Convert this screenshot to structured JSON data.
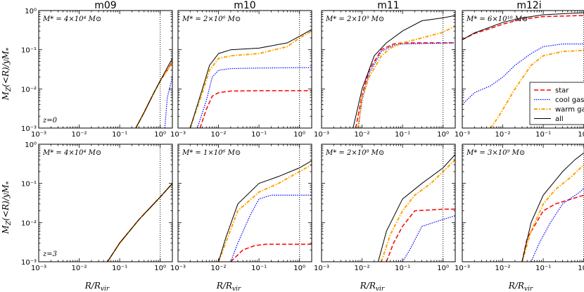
{
  "chart_data": {
    "type": "line",
    "xlabel": "R/R_vir",
    "ylabel": "M_Z(<R)/yM_*",
    "xlim": [
      0.001,
      2
    ],
    "ylim": [
      0.001,
      1
    ],
    "x_scale": "log",
    "y_scale": "log",
    "x_tick_labels": [
      "10^-3",
      "10^-2",
      "10^-1",
      "10^0"
    ],
    "y_tick_labels": [
      "10^-3",
      "10^-2",
      "10^-1",
      "10^0"
    ],
    "series_styles": [
      {
        "key": "star",
        "name": "star",
        "color": "#ff0000",
        "dash": "6,3",
        "width": 1.5
      },
      {
        "key": "cool",
        "name": "cool gas",
        "color": "#0000ff",
        "dash": "1.5,1.5",
        "width": 1.2
      },
      {
        "key": "warm",
        "name": "warm gas",
        "color": "#ffa500",
        "dash": "5,2,1.5,2",
        "width": 2
      },
      {
        "key": "all",
        "name": "all",
        "color": "#000000",
        "dash": "",
        "width": 1
      }
    ],
    "legend": {
      "panel": 3,
      "position": "center-right"
    },
    "vline_x": 1,
    "panels": [
      {
        "column_title": "m09",
        "annotation": "M_* = 4×10^4 M_⊙",
        "redshift": "z=0",
        "series": {
          "star": [
            [
              0.25,
              0.001
            ],
            [
              0.4,
              0.0025
            ],
            [
              0.7,
              0.008
            ],
            [
              1,
              0.016
            ],
            [
              1.5,
              0.03
            ],
            [
              2,
              0.05
            ]
          ],
          "cool": [
            [
              1.3,
              0.001
            ],
            [
              1.5,
              0.006
            ],
            [
              2,
              0.02
            ]
          ],
          "warm": [
            [
              0.25,
              0.001
            ],
            [
              0.4,
              0.0025
            ],
            [
              0.7,
              0.008
            ],
            [
              1,
              0.016
            ],
            [
              1.5,
              0.03
            ],
            [
              2,
              0.05
            ]
          ],
          "all": [
            [
              0.25,
              0.001
            ],
            [
              0.4,
              0.0025
            ],
            [
              0.7,
              0.008
            ],
            [
              1,
              0.016
            ],
            [
              1.5,
              0.035
            ],
            [
              2,
              0.06
            ]
          ]
        }
      },
      {
        "column_title": "m10",
        "annotation": "M_* = 2×10^6 M_⊙",
        "redshift": "",
        "series": {
          "star": [
            [
              0.0035,
              0.001
            ],
            [
              0.005,
              0.003
            ],
            [
              0.007,
              0.0065
            ],
            [
              0.01,
              0.008
            ],
            [
              0.02,
              0.0088
            ],
            [
              0.1,
              0.009
            ],
            [
              2,
              0.009
            ]
          ],
          "cool": [
            [
              0.003,
              0.001
            ],
            [
              0.005,
              0.005
            ],
            [
              0.007,
              0.02
            ],
            [
              0.01,
              0.03
            ],
            [
              0.02,
              0.033
            ],
            [
              0.1,
              0.034
            ],
            [
              2,
              0.035
            ]
          ],
          "warm": [
            [
              0.002,
              0.001
            ],
            [
              0.004,
              0.008
            ],
            [
              0.006,
              0.03
            ],
            [
              0.01,
              0.06
            ],
            [
              0.02,
              0.07
            ],
            [
              0.1,
              0.08
            ],
            [
              0.5,
              0.12
            ],
            [
              1,
              0.2
            ],
            [
              2,
              0.3
            ]
          ],
          "all": [
            [
              0.002,
              0.001
            ],
            [
              0.004,
              0.01
            ],
            [
              0.006,
              0.04
            ],
            [
              0.01,
              0.08
            ],
            [
              0.02,
              0.1
            ],
            [
              0.1,
              0.11
            ],
            [
              0.5,
              0.15
            ],
            [
              1,
              0.22
            ],
            [
              2,
              0.33
            ]
          ]
        }
      },
      {
        "column_title": "m11",
        "annotation": "M_* = 2×10^9 M_⊙",
        "redshift": "",
        "series": {
          "star": [
            [
              0.007,
              0.001
            ],
            [
              0.01,
              0.007
            ],
            [
              0.015,
              0.03
            ],
            [
              0.03,
              0.1
            ],
            [
              0.06,
              0.14
            ],
            [
              0.1,
              0.15
            ],
            [
              2,
              0.15
            ]
          ],
          "cool": [
            [
              0.008,
              0.001
            ],
            [
              0.01,
              0.005
            ],
            [
              0.015,
              0.025
            ],
            [
              0.03,
              0.09
            ],
            [
              0.06,
              0.13
            ],
            [
              0.1,
              0.14
            ],
            [
              2,
              0.15
            ]
          ],
          "warm": [
            [
              0.008,
              0.001
            ],
            [
              0.01,
              0.006
            ],
            [
              0.015,
              0.02
            ],
            [
              0.03,
              0.07
            ],
            [
              0.05,
              0.11
            ],
            [
              0.1,
              0.15
            ],
            [
              0.3,
              0.2
            ],
            [
              1,
              0.28
            ],
            [
              2,
              0.4
            ]
          ],
          "all": [
            [
              0.006,
              0.001
            ],
            [
              0.01,
              0.01
            ],
            [
              0.02,
              0.07
            ],
            [
              0.04,
              0.15
            ],
            [
              0.1,
              0.3
            ],
            [
              0.3,
              0.55
            ],
            [
              1,
              0.65
            ],
            [
              2,
              0.75
            ]
          ]
        }
      },
      {
        "column_title": "m12i",
        "annotation": "M_* = 6×10^10 M_⊙",
        "redshift": "",
        "series": {
          "star": [
            [
              0.001,
              0.18
            ],
            [
              0.002,
              0.26
            ],
            [
              0.005,
              0.35
            ],
            [
              0.01,
              0.45
            ],
            [
              0.03,
              0.6
            ],
            [
              0.1,
              0.7
            ],
            [
              1,
              0.75
            ],
            [
              2,
              0.75
            ]
          ],
          "cool": [
            [
              0.001,
              0.004
            ],
            [
              0.002,
              0.008
            ],
            [
              0.005,
              0.012
            ],
            [
              0.01,
              0.02
            ],
            [
              0.02,
              0.04
            ],
            [
              0.05,
              0.08
            ],
            [
              0.1,
              0.12
            ],
            [
              0.3,
              0.14
            ],
            [
              2,
              0.14
            ]
          ],
          "warm": [
            [
              0.005,
              0.001
            ],
            [
              0.008,
              0.002
            ],
            [
              0.02,
              0.01
            ],
            [
              0.05,
              0.04
            ],
            [
              0.1,
              0.07
            ],
            [
              0.3,
              0.09
            ],
            [
              2,
              0.1
            ]
          ],
          "all": [
            [
              0.001,
              0.18
            ],
            [
              0.002,
              0.27
            ],
            [
              0.005,
              0.38
            ],
            [
              0.01,
              0.5
            ],
            [
              0.03,
              0.65
            ],
            [
              0.1,
              0.78
            ],
            [
              0.5,
              0.85
            ],
            [
              1,
              0.88
            ],
            [
              2,
              0.95
            ]
          ]
        }
      },
      {
        "column_title": "",
        "annotation": "M_* = 4×10^4 M_⊙",
        "redshift": "z=3",
        "series": {
          "star": [
            [
              0.05,
              0.001
            ],
            [
              0.1,
              0.003
            ],
            [
              0.3,
              0.012
            ],
            [
              1,
              0.045
            ],
            [
              2,
              0.1
            ]
          ],
          "cool": [],
          "warm": [
            [
              0.05,
              0.001
            ],
            [
              0.1,
              0.003
            ],
            [
              0.3,
              0.012
            ],
            [
              1,
              0.045
            ],
            [
              2,
              0.1
            ]
          ],
          "all": [
            [
              0.05,
              0.001
            ],
            [
              0.1,
              0.003
            ],
            [
              0.3,
              0.012
            ],
            [
              1,
              0.045
            ],
            [
              2,
              0.1
            ]
          ]
        }
      },
      {
        "column_title": "",
        "annotation": "M_* = 1×10^6 M_⊙",
        "redshift": "",
        "series": {
          "star": [
            [
              0.02,
              0.001
            ],
            [
              0.04,
              0.002
            ],
            [
              0.08,
              0.0026
            ],
            [
              0.15,
              0.0028
            ],
            [
              0.3,
              0.0028
            ],
            [
              2,
              0.0028
            ]
          ],
          "cool": [
            [
              0.02,
              0.001
            ],
            [
              0.03,
              0.003
            ],
            [
              0.06,
              0.015
            ],
            [
              0.1,
              0.04
            ],
            [
              0.2,
              0.05
            ],
            [
              1,
              0.05
            ],
            [
              2,
              0.05
            ]
          ],
          "warm": [
            [
              0.01,
              0.001
            ],
            [
              0.015,
              0.003
            ],
            [
              0.03,
              0.02
            ],
            [
              0.1,
              0.06
            ],
            [
              0.3,
              0.1
            ],
            [
              1,
              0.2
            ],
            [
              2,
              0.3
            ]
          ],
          "all": [
            [
              0.01,
              0.001
            ],
            [
              0.015,
              0.004
            ],
            [
              0.03,
              0.03
            ],
            [
              0.1,
              0.1
            ],
            [
              0.3,
              0.15
            ],
            [
              1,
              0.25
            ],
            [
              2,
              0.38
            ]
          ]
        }
      },
      {
        "column_title": "",
        "annotation": "M_* = 2×10^8 M_⊙",
        "redshift": "",
        "series": {
          "star": [
            [
              0.04,
              0.001
            ],
            [
              0.06,
              0.003
            ],
            [
              0.1,
              0.008
            ],
            [
              0.2,
              0.02
            ],
            [
              1,
              0.022
            ],
            [
              2,
              0.022
            ]
          ],
          "cool": [
            [
              0.1,
              0.001
            ],
            [
              0.15,
              0.002
            ],
            [
              0.3,
              0.008
            ],
            [
              1,
              0.012
            ],
            [
              2,
              0.015
            ]
          ],
          "warm": [
            [
              0.03,
              0.001
            ],
            [
              0.05,
              0.005
            ],
            [
              0.1,
              0.02
            ],
            [
              0.2,
              0.05
            ],
            [
              0.5,
              0.1
            ],
            [
              1,
              0.2
            ],
            [
              2,
              0.4
            ]
          ],
          "all": [
            [
              0.025,
              0.001
            ],
            [
              0.04,
              0.006
            ],
            [
              0.1,
              0.04
            ],
            [
              0.3,
              0.1
            ],
            [
              1,
              0.25
            ],
            [
              2,
              0.55
            ]
          ]
        }
      },
      {
        "column_title": "",
        "annotation": "M_* = 3×10^9 M_⊙",
        "redshift": "",
        "series": {
          "star": [
            [
              0.03,
              0.001
            ],
            [
              0.04,
              0.004
            ],
            [
              0.06,
              0.008
            ],
            [
              0.1,
              0.02
            ],
            [
              0.2,
              0.03
            ],
            [
              0.5,
              0.04
            ],
            [
              1,
              0.05
            ],
            [
              2,
              0.05
            ]
          ],
          "cool": [
            [
              0.05,
              0.001
            ],
            [
              0.08,
              0.003
            ],
            [
              0.15,
              0.01
            ],
            [
              0.3,
              0.03
            ],
            [
              0.8,
              0.06
            ],
            [
              1.2,
              0.09
            ],
            [
              2,
              0.1
            ]
          ],
          "warm": [
            [
              0.03,
              0.001
            ],
            [
              0.05,
              0.006
            ],
            [
              0.1,
              0.03
            ],
            [
              0.2,
              0.07
            ],
            [
              0.5,
              0.15
            ],
            [
              1,
              0.3
            ],
            [
              2,
              0.6
            ]
          ],
          "all": [
            [
              0.03,
              0.001
            ],
            [
              0.05,
              0.01
            ],
            [
              0.1,
              0.05
            ],
            [
              0.3,
              0.2
            ],
            [
              0.6,
              0.4
            ],
            [
              1,
              0.6
            ],
            [
              2,
              0.8
            ]
          ]
        }
      }
    ]
  }
}
